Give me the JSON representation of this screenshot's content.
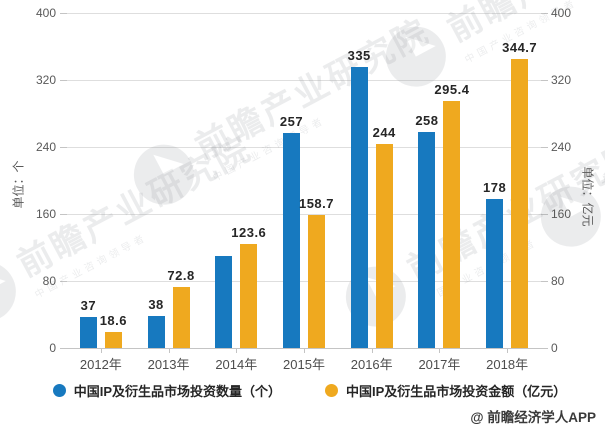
{
  "watermark": {
    "text": "前瞻产业研究院",
    "subtext": "中国产业咨询领导者"
  },
  "footer": {
    "credit": "@ 前瞻经济学人APP"
  },
  "chart_data": {
    "type": "bar",
    "title": "",
    "categories": [
      "2012年",
      "2013年",
      "2014年",
      "2015年",
      "2016年",
      "2017年",
      "2018年"
    ],
    "series": [
      {
        "name": "中国IP及衍生品市场投资数量（个）",
        "color": "#1779bf",
        "yaxis": "left",
        "values": [
          37,
          38,
          110,
          257,
          335,
          258,
          178
        ],
        "labels": [
          "37",
          "38",
          "",
          "257",
          "335",
          "258",
          "178"
        ]
      },
      {
        "name": "中国IP及衍生品市场投资金额（亿元）",
        "color": "#efa91f",
        "yaxis": "right",
        "values": [
          18.6,
          72.8,
          123.6,
          158.7,
          244,
          295.4,
          344.7
        ],
        "labels": [
          "18.6",
          "72.8",
          "123.6",
          "158.7",
          "244",
          "295.4",
          "344.7"
        ]
      }
    ],
    "left_axis": {
      "title": "单位：个",
      "ticks": [
        0,
        80,
        160,
        240,
        320,
        400
      ],
      "min": 0,
      "max": 400
    },
    "right_axis": {
      "title": "单位：亿元",
      "ticks": [
        0,
        80,
        160,
        240,
        320,
        400
      ],
      "min": 0,
      "max": 400
    },
    "grid": true,
    "legend_position": "bottom"
  }
}
